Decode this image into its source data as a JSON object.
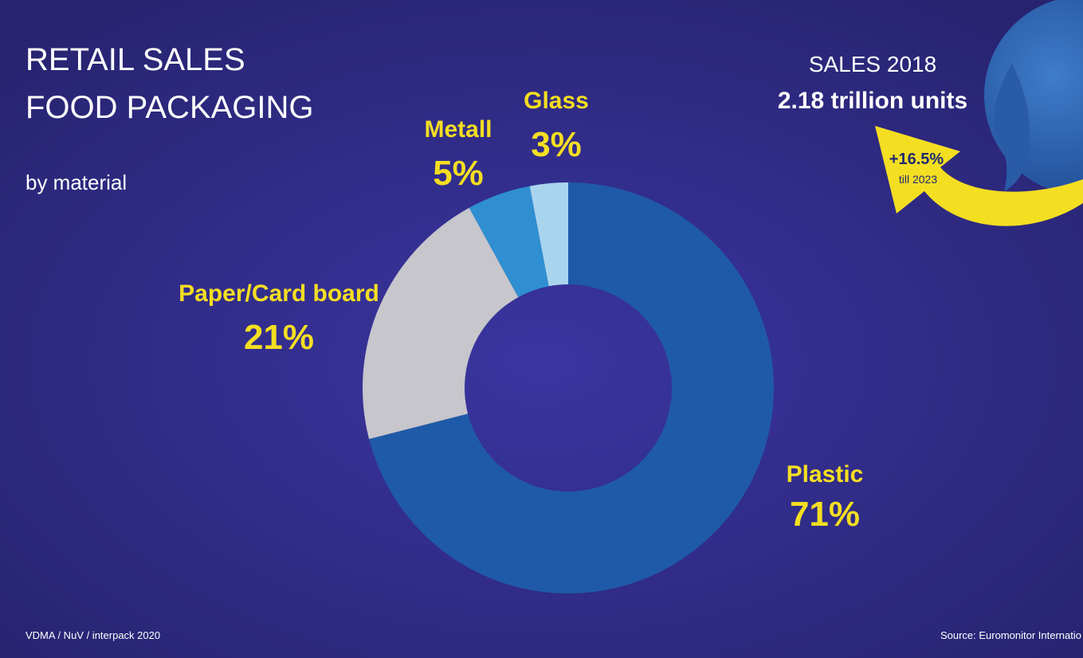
{
  "chart_data": {
    "type": "donut",
    "title": [
      "RETAIL SALES",
      "FOOD PACKAGING"
    ],
    "subtitle": "by material",
    "categories": [
      "Plastic",
      "Paper/Card board",
      "Metall",
      "Glass"
    ],
    "values": [
      71,
      21,
      5,
      3
    ],
    "value_labels": [
      "71%",
      "21%",
      "5%",
      "3%"
    ],
    "colors": [
      "#1f5aa8",
      "#c6c6cc",
      "#2f8fd0",
      "#a9d4ee"
    ],
    "annotations": {
      "sales_label": "SALES 2018",
      "sales_value": "2.18 trillion units",
      "growth": "+16.5%",
      "growth_period": "till 2023"
    },
    "footer": "VDMA / NuV / interpack 2020",
    "source": "Source: Euromonitor Internatio"
  }
}
